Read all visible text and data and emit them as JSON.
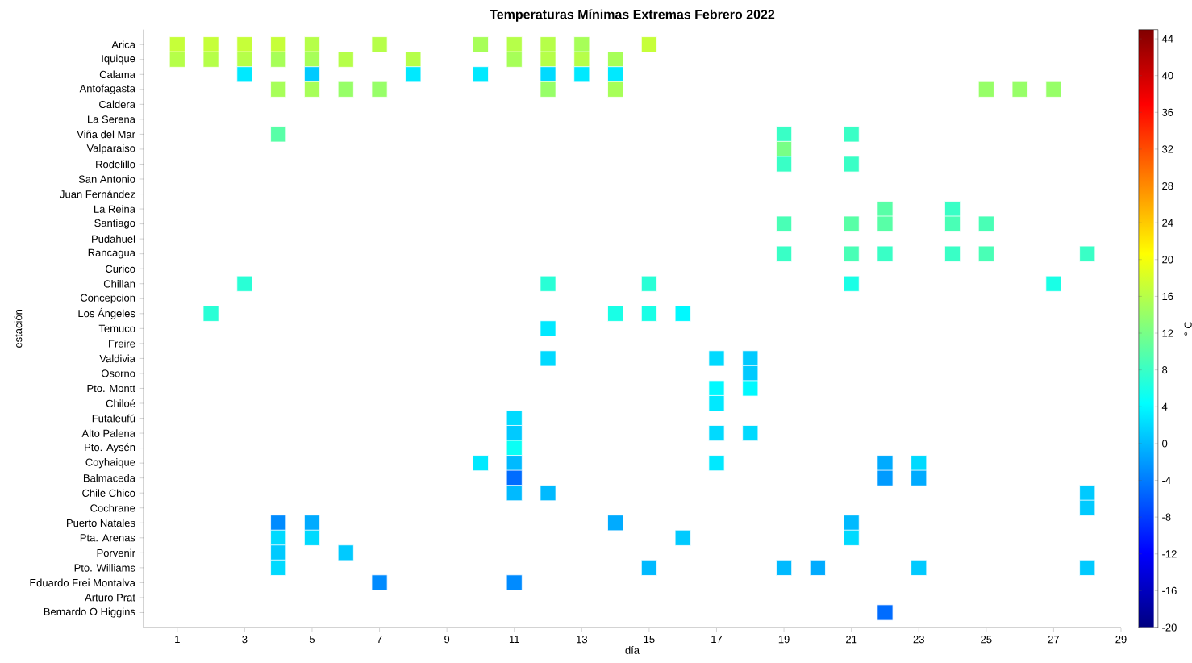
{
  "chart_data": {
    "type": "heatmap",
    "title": "Temperaturas Mínimas Extremas Febrero 2022",
    "xlabel": "día",
    "ylabel": "estación",
    "clabel": "° C",
    "categories": [
      "1",
      null,
      "3",
      null,
      "5",
      null,
      "7",
      null,
      "9",
      null,
      "11",
      null,
      "13",
      null,
      "15",
      null,
      "17",
      null,
      "19",
      null,
      "21",
      null,
      "23",
      null,
      "25",
      null,
      "27",
      null,
      "29"
    ],
    "y_categories": [
      "Arica",
      "Iquique",
      "Calama",
      "Antofagasta",
      "Caldera",
      "La Serena",
      "Viña del Mar",
      "Valparaiso",
      "Rodelillo",
      "San Antonio",
      "Juan Fernández",
      "La Reina",
      "Santiago",
      "Pudahuel",
      "Rancagua",
      "Curico",
      "Chillan",
      "Concepcion",
      "Los Ángeles",
      "Temuco",
      "Freire",
      "Valdivia",
      "Osorno",
      "Pto. Montt",
      "Chiloé",
      "Futaleufú",
      "Alto Palena",
      "Pto. Aysén",
      "Coyhaique",
      "Balmaceda",
      "Chile Chico",
      "Cochrane",
      "Puerto Natales",
      "Pta. Arenas",
      "Porvenir",
      "Pto. Williams",
      "Eduardo Frei Montalva",
      "Arturo Prat",
      "Bernardo O Higgins"
    ],
    "cells": [
      [
        17,
        17,
        17,
        17,
        16,
        null,
        16,
        null,
        null,
        15,
        16,
        16,
        15,
        null,
        17,
        null,
        null,
        null,
        null,
        null,
        null,
        null,
        null,
        null,
        null,
        null,
        null,
        null,
        null
      ],
      [
        16,
        16,
        16,
        15,
        15,
        16,
        null,
        16,
        null,
        null,
        15,
        16,
        16,
        15,
        null,
        null,
        null,
        null,
        null,
        null,
        null,
        null,
        null,
        null,
        null,
        null,
        null,
        null,
        null
      ],
      [
        null,
        null,
        3,
        null,
        1,
        null,
        null,
        3,
        null,
        3,
        null,
        2,
        3,
        3,
        null,
        null,
        null,
        null,
        null,
        null,
        null,
        null,
        null,
        null,
        null,
        null,
        null,
        null,
        null
      ],
      [
        null,
        null,
        null,
        15,
        15,
        14,
        14,
        null,
        null,
        null,
        null,
        14,
        null,
        15,
        null,
        null,
        null,
        null,
        null,
        null,
        null,
        null,
        null,
        null,
        14,
        14,
        14,
        null,
        null
      ],
      [
        null,
        null,
        null,
        null,
        null,
        null,
        null,
        null,
        null,
        null,
        null,
        null,
        null,
        null,
        null,
        null,
        null,
        null,
        null,
        null,
        null,
        null,
        null,
        null,
        null,
        null,
        null,
        null,
        null
      ],
      [
        null,
        null,
        null,
        null,
        null,
        null,
        null,
        null,
        null,
        null,
        null,
        null,
        null,
        null,
        null,
        null,
        null,
        null,
        null,
        null,
        null,
        null,
        null,
        null,
        null,
        null,
        null,
        null,
        null
      ],
      [
        null,
        null,
        null,
        10,
        null,
        null,
        null,
        null,
        null,
        null,
        null,
        null,
        null,
        null,
        null,
        null,
        null,
        null,
        8,
        null,
        8,
        null,
        null,
        null,
        null,
        null,
        null,
        null,
        null
      ],
      [
        null,
        null,
        null,
        null,
        null,
        null,
        null,
        null,
        null,
        null,
        null,
        null,
        null,
        null,
        null,
        null,
        null,
        null,
        12,
        null,
        null,
        null,
        null,
        null,
        null,
        null,
        null,
        null,
        null
      ],
      [
        null,
        null,
        null,
        null,
        null,
        null,
        null,
        null,
        null,
        null,
        null,
        null,
        null,
        null,
        null,
        null,
        null,
        null,
        8,
        null,
        8,
        null,
        null,
        null,
        null,
        null,
        null,
        null,
        null
      ],
      [
        null,
        null,
        null,
        null,
        null,
        null,
        null,
        null,
        null,
        null,
        null,
        null,
        null,
        null,
        null,
        null,
        null,
        null,
        null,
        null,
        null,
        null,
        null,
        null,
        null,
        null,
        null,
        null,
        null
      ],
      [
        null,
        null,
        null,
        null,
        null,
        null,
        null,
        null,
        null,
        null,
        null,
        null,
        null,
        null,
        null,
        null,
        null,
        null,
        null,
        null,
        null,
        null,
        null,
        null,
        null,
        null,
        null,
        null,
        null
      ],
      [
        null,
        null,
        null,
        null,
        null,
        null,
        null,
        null,
        null,
        null,
        null,
        null,
        null,
        null,
        null,
        null,
        null,
        null,
        null,
        null,
        null,
        10,
        null,
        8,
        null,
        null,
        null,
        null,
        null
      ],
      [
        null,
        null,
        null,
        null,
        null,
        null,
        null,
        null,
        null,
        null,
        null,
        null,
        null,
        null,
        null,
        null,
        null,
        null,
        9,
        null,
        10,
        10,
        null,
        9,
        9,
        null,
        null,
        null,
        null
      ],
      [
        null,
        null,
        null,
        null,
        null,
        null,
        null,
        null,
        null,
        null,
        null,
        null,
        null,
        null,
        null,
        null,
        null,
        null,
        null,
        null,
        null,
        null,
        null,
        null,
        null,
        null,
        null,
        null,
        null
      ],
      [
        null,
        null,
        null,
        null,
        null,
        null,
        null,
        null,
        null,
        null,
        null,
        null,
        null,
        null,
        null,
        null,
        null,
        null,
        8,
        null,
        9,
        8,
        null,
        8,
        9,
        null,
        null,
        8,
        null
      ],
      [
        null,
        null,
        null,
        null,
        null,
        null,
        null,
        null,
        null,
        null,
        null,
        null,
        null,
        null,
        null,
        null,
        null,
        null,
        null,
        null,
        null,
        null,
        null,
        null,
        null,
        null,
        null,
        null,
        null
      ],
      [
        null,
        null,
        7,
        null,
        null,
        null,
        null,
        null,
        null,
        null,
        null,
        7,
        null,
        null,
        7,
        null,
        null,
        null,
        null,
        null,
        6,
        null,
        null,
        null,
        null,
        null,
        6,
        null,
        null
      ],
      [
        null,
        null,
        null,
        null,
        null,
        null,
        null,
        null,
        null,
        null,
        null,
        null,
        null,
        null,
        null,
        null,
        null,
        null,
        null,
        null,
        null,
        null,
        null,
        null,
        null,
        null,
        null,
        null,
        null
      ],
      [
        null,
        7,
        null,
        null,
        null,
        null,
        null,
        null,
        null,
        null,
        null,
        null,
        null,
        6,
        6,
        4,
        null,
        null,
        null,
        null,
        null,
        null,
        null,
        null,
        null,
        null,
        null,
        null,
        null
      ],
      [
        null,
        null,
        null,
        null,
        null,
        null,
        null,
        null,
        null,
        null,
        null,
        3,
        null,
        null,
        null,
        null,
        null,
        null,
        null,
        null,
        null,
        null,
        null,
        null,
        null,
        null,
        null,
        null,
        null
      ],
      [
        null,
        null,
        null,
        null,
        null,
        null,
        null,
        null,
        null,
        null,
        null,
        null,
        null,
        null,
        null,
        null,
        null,
        null,
        null,
        null,
        null,
        null,
        null,
        null,
        null,
        null,
        null,
        null,
        null
      ],
      [
        null,
        null,
        null,
        null,
        null,
        null,
        null,
        null,
        null,
        null,
        null,
        2,
        null,
        null,
        null,
        null,
        2,
        1,
        null,
        null,
        null,
        null,
        null,
        null,
        null,
        null,
        null,
        null,
        null
      ],
      [
        null,
        null,
        null,
        null,
        null,
        null,
        null,
        null,
        null,
        null,
        null,
        null,
        null,
        null,
        null,
        null,
        null,
        1,
        null,
        null,
        null,
        null,
        null,
        null,
        null,
        null,
        null,
        null,
        null
      ],
      [
        null,
        null,
        null,
        null,
        null,
        null,
        null,
        null,
        null,
        null,
        null,
        null,
        null,
        null,
        null,
        null,
        4,
        4,
        null,
        null,
        null,
        null,
        null,
        null,
        null,
        null,
        null,
        null,
        null
      ],
      [
        null,
        null,
        null,
        null,
        null,
        null,
        null,
        null,
        null,
        null,
        null,
        null,
        null,
        null,
        null,
        null,
        3,
        null,
        null,
        null,
        null,
        null,
        null,
        null,
        null,
        null,
        null,
        null,
        null
      ],
      [
        null,
        null,
        null,
        null,
        null,
        null,
        null,
        null,
        null,
        null,
        2,
        null,
        null,
        null,
        null,
        null,
        null,
        null,
        null,
        null,
        null,
        null,
        null,
        null,
        null,
        null,
        null,
        null,
        null
      ],
      [
        null,
        null,
        null,
        null,
        null,
        null,
        null,
        null,
        null,
        null,
        1,
        null,
        null,
        null,
        null,
        null,
        2,
        2,
        null,
        null,
        null,
        null,
        null,
        null,
        null,
        null,
        null,
        null,
        null
      ],
      [
        null,
        null,
        null,
        null,
        null,
        null,
        null,
        null,
        null,
        null,
        5,
        null,
        null,
        null,
        null,
        null,
        null,
        null,
        null,
        null,
        null,
        null,
        null,
        null,
        null,
        null,
        null,
        null,
        null
      ],
      [
        null,
        null,
        null,
        null,
        null,
        null,
        null,
        null,
        null,
        3,
        0,
        null,
        null,
        null,
        null,
        null,
        3,
        null,
        null,
        null,
        null,
        -1,
        2,
        null,
        null,
        null,
        null,
        null,
        null
      ],
      [
        null,
        null,
        null,
        null,
        null,
        null,
        null,
        null,
        null,
        null,
        -5,
        null,
        null,
        null,
        null,
        null,
        null,
        null,
        null,
        null,
        null,
        -2,
        -1,
        null,
        null,
        null,
        null,
        null,
        null
      ],
      [
        null,
        null,
        null,
        null,
        null,
        null,
        null,
        null,
        null,
        null,
        0,
        0,
        null,
        null,
        null,
        null,
        null,
        null,
        null,
        null,
        null,
        null,
        null,
        null,
        null,
        null,
        null,
        1,
        null
      ],
      [
        null,
        null,
        null,
        null,
        null,
        null,
        null,
        null,
        null,
        null,
        null,
        null,
        null,
        null,
        null,
        null,
        null,
        null,
        null,
        null,
        null,
        null,
        null,
        null,
        null,
        null,
        null,
        1,
        null
      ],
      [
        null,
        null,
        null,
        -3,
        -1,
        null,
        null,
        null,
        null,
        null,
        null,
        null,
        null,
        -1,
        null,
        null,
        null,
        null,
        null,
        null,
        0,
        null,
        null,
        null,
        null,
        null,
        null,
        null,
        null
      ],
      [
        null,
        null,
        null,
        2,
        2,
        null,
        null,
        null,
        null,
        null,
        null,
        null,
        null,
        null,
        null,
        1,
        null,
        null,
        null,
        null,
        2,
        null,
        null,
        null,
        null,
        null,
        null,
        null,
        null
      ],
      [
        null,
        null,
        null,
        1,
        null,
        1,
        null,
        null,
        null,
        null,
        null,
        null,
        null,
        null,
        null,
        null,
        null,
        null,
        null,
        null,
        null,
        null,
        null,
        null,
        null,
        null,
        null,
        null,
        null
      ],
      [
        null,
        null,
        null,
        2,
        null,
        null,
        null,
        null,
        null,
        null,
        null,
        null,
        null,
        null,
        0,
        null,
        null,
        null,
        0,
        -1,
        null,
        null,
        1,
        null,
        null,
        null,
        null,
        1,
        null
      ],
      [
        null,
        null,
        null,
        null,
        null,
        null,
        -3,
        null,
        null,
        null,
        -3,
        null,
        null,
        null,
        null,
        null,
        null,
        null,
        null,
        null,
        null,
        null,
        null,
        null,
        null,
        null,
        null,
        null,
        null
      ],
      [
        null,
        null,
        null,
        null,
        null,
        null,
        null,
        null,
        null,
        null,
        null,
        null,
        null,
        null,
        null,
        null,
        null,
        null,
        null,
        null,
        null,
        null,
        null,
        null,
        null,
        null,
        null,
        null,
        null
      ],
      [
        null,
        null,
        null,
        null,
        null,
        null,
        null,
        null,
        null,
        null,
        null,
        null,
        null,
        null,
        null,
        null,
        null,
        null,
        null,
        null,
        null,
        -5,
        null,
        null,
        null,
        null,
        null,
        null,
        null
      ]
    ],
    "clim": [
      -20,
      45
    ],
    "cticks": [
      -20,
      -16,
      -12,
      -8,
      -4,
      0,
      4,
      8,
      12,
      16,
      20,
      24,
      28,
      32,
      36,
      40,
      44
    ]
  }
}
